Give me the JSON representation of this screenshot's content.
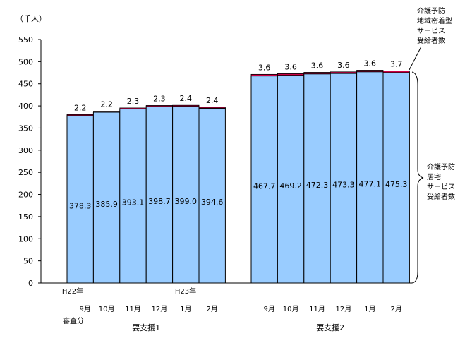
{
  "chart_data": {
    "type": "bar",
    "unit_label": "（千人）",
    "ylim": [
      0,
      550
    ],
    "yticks": [
      0,
      50,
      100,
      150,
      200,
      250,
      300,
      350,
      400,
      450,
      500,
      550
    ],
    "grid": false,
    "groups": [
      {
        "name": "要支援1",
        "categories": [
          "9月",
          "10月",
          "11月",
          "12月",
          "1月",
          "2月"
        ],
        "home_values": [
          378.3,
          385.9,
          393.1,
          398.7,
          399.0,
          394.6
        ],
        "community_values": [
          2.2,
          2.2,
          2.3,
          2.3,
          2.4,
          2.4
        ]
      },
      {
        "name": "要支援2",
        "categories": [
          "9月",
          "10月",
          "11月",
          "12月",
          "1月",
          "2月"
        ],
        "home_values": [
          467.7,
          469.2,
          472.3,
          473.3,
          477.1,
          475.3
        ],
        "community_values": [
          3.6,
          3.6,
          3.6,
          3.6,
          3.6,
          3.7
        ]
      }
    ],
    "series": [
      {
        "name": "介護予防居宅サービス受給者数",
        "color": "#99ccff"
      },
      {
        "name": "介護予防地域密着型サービス受給者数",
        "color": "#cc0044"
      }
    ],
    "legend_upper": [
      "介護予防",
      "地域密着型",
      "サービス",
      "受給者数"
    ],
    "legend_lower": [
      "介護予防",
      "居宅",
      "サービス",
      "受給者数"
    ],
    "x_notes": {
      "year_start": "H22年",
      "year_mid": "H23年",
      "review_label": "審査分"
    }
  }
}
